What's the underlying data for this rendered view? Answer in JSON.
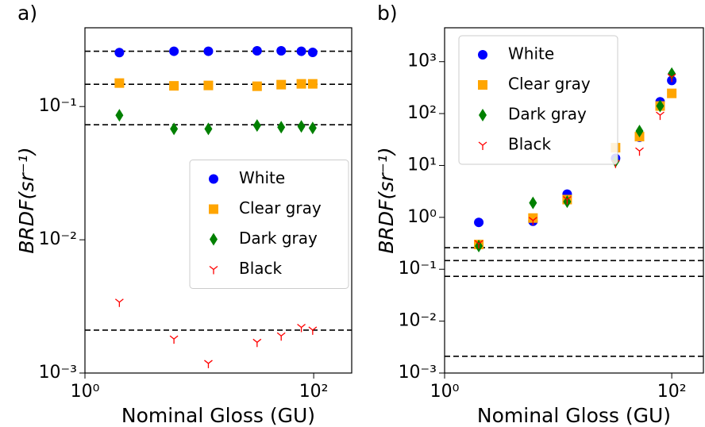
{
  "chart_data": [
    {
      "type": "scatter",
      "panel_label": "a)",
      "xlabel": "Nominal Gloss (GU)",
      "ylabel": "BRDF(sr⁻¹)",
      "xscale": "log",
      "yscale": "log",
      "xlim": [
        1,
        215
      ],
      "ylim": [
        0.001,
        0.39
      ],
      "xticks": [
        {
          "value": 1,
          "label": "10⁰"
        },
        {
          "value": 100,
          "label": "10²"
        }
      ],
      "yticks": [
        {
          "value": 0.001,
          "label": "10⁻³"
        },
        {
          "value": 0.01,
          "label": "10⁻²"
        },
        {
          "value": 0.1,
          "label": "10⁻¹"
        }
      ],
      "legend": "center right",
      "reference_lines": [
        0.26,
        0.147,
        0.073,
        0.0021
      ],
      "reference_line_color": "#000000",
      "x": [
        2,
        6,
        12,
        32,
        52,
        78,
        98
      ],
      "series": [
        {
          "name": "White",
          "color": "#0000ff",
          "marker": "circle",
          "values": [
            0.254,
            0.26,
            0.26,
            0.262,
            0.262,
            0.26,
            0.255
          ]
        },
        {
          "name": "Clear gray",
          "color": "#ffa500",
          "marker": "square",
          "values": [
            0.15,
            0.143,
            0.144,
            0.142,
            0.146,
            0.148,
            0.148
          ]
        },
        {
          "name": "Dark gray",
          "color": "#008000",
          "marker": "diamond",
          "values": [
            0.086,
            0.068,
            0.068,
            0.072,
            0.07,
            0.071,
            0.069
          ]
        },
        {
          "name": "Black",
          "color": "#ff0000",
          "marker": "tri_down",
          "values": [
            0.0034,
            0.0018,
            0.00118,
            0.0017,
            0.0019,
            0.0022,
            0.0021
          ]
        }
      ]
    },
    {
      "type": "scatter",
      "panel_label": "b)",
      "xlabel": "Nominal Gloss (GU)",
      "ylabel": "BRDF(sr⁻¹)",
      "xscale": "log",
      "yscale": "log",
      "xlim": [
        1,
        190
      ],
      "ylim": [
        0.001,
        4500
      ],
      "xticks": [
        {
          "value": 1,
          "label": "10⁰"
        },
        {
          "value": 100,
          "label": "10²"
        }
      ],
      "yticks": [
        {
          "value": 0.001,
          "label": "10⁻³"
        },
        {
          "value": 0.01,
          "label": "10⁻²"
        },
        {
          "value": 0.1,
          "label": "10⁻¹"
        },
        {
          "value": 1,
          "label": "10⁰"
        },
        {
          "value": 10,
          "label": "10¹"
        },
        {
          "value": 100,
          "label": "10²"
        },
        {
          "value": 1000,
          "label": "10³"
        }
      ],
      "legend": "upper left",
      "reference_lines": [
        0.26,
        0.147,
        0.073,
        0.0021
      ],
      "reference_line_color": "#000000",
      "x": [
        2,
        6,
        12,
        32,
        52,
        79,
        100
      ],
      "series": [
        {
          "name": "White",
          "color": "#0000ff",
          "marker": "circle",
          "values": [
            0.8,
            0.84,
            2.8,
            13.7,
            35,
            169,
            435
          ]
        },
        {
          "name": "Clear gray",
          "color": "#ffa500",
          "marker": "square",
          "values": [
            0.3,
            0.97,
            2.2,
            22,
            36,
            140,
            245
          ]
        },
        {
          "name": "Dark gray",
          "color": "#008000",
          "marker": "diamond",
          "values": [
            0.28,
            1.9,
            2.0,
            12,
            46,
            140,
            590
          ]
        },
        {
          "name": "Black",
          "color": "#ff0000",
          "marker": "tri_down",
          "values": [
            0.31,
            0.87,
            2.2,
            11,
            19,
            93,
            500
          ]
        }
      ]
    }
  ]
}
